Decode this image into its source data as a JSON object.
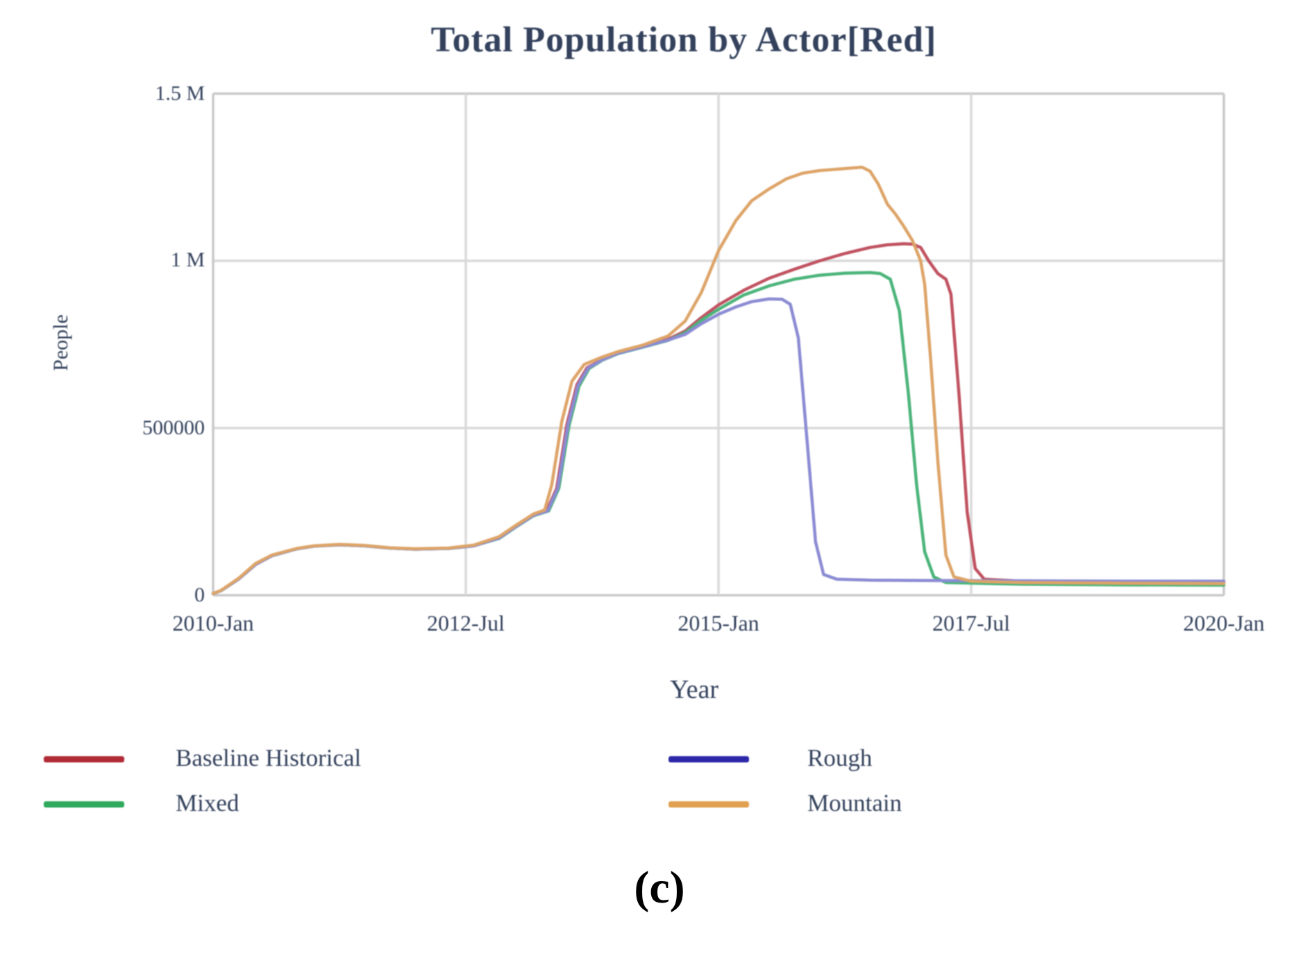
{
  "figure": {
    "caption": "(c)"
  },
  "chart_data": {
    "type": "line",
    "title": "Total Population by Actor[Red]",
    "xlabel": "Year",
    "ylabel": "People",
    "xlim": [
      2010,
      2020
    ],
    "ylim": [
      0,
      1500000
    ],
    "grid": true,
    "legend_position": "below-two-columns",
    "background_color": "#ffffff",
    "grid_color": "#d9d9d9",
    "frame_color": "#c9c9c9",
    "text_color": "#33415c",
    "x_ticks": [
      {
        "label": "2010-Jan",
        "year": 2010
      },
      {
        "label": "2012-Jul",
        "year": 2012.5
      },
      {
        "label": "2015-Jan",
        "year": 2015
      },
      {
        "label": "2017-Jul",
        "year": 2017.5
      },
      {
        "label": "2020-Jan",
        "year": 2020
      }
    ],
    "y_ticks": [
      {
        "label": "1.5 M",
        "value": 1500000
      },
      {
        "label": "1 M",
        "value": 1000000
      },
      {
        "label": "500000",
        "value": 500000
      },
      {
        "label": "0",
        "value": 0
      }
    ],
    "series": [
      {
        "name": "Baseline Historical",
        "line_color": "#c05260",
        "legend_color": "#b02b35",
        "points": [
          [
            2010.0,
            5000
          ],
          [
            2010.08,
            14000
          ],
          [
            2010.25,
            48000
          ],
          [
            2010.42,
            92000
          ],
          [
            2010.58,
            118000
          ],
          [
            2010.83,
            139000
          ],
          [
            2011.0,
            147000
          ],
          [
            2011.25,
            151000
          ],
          [
            2011.5,
            148000
          ],
          [
            2011.75,
            141000
          ],
          [
            2012.0,
            138000
          ],
          [
            2012.33,
            140000
          ],
          [
            2012.58,
            148000
          ],
          [
            2012.83,
            172000
          ],
          [
            2013.0,
            207000
          ],
          [
            2013.17,
            240000
          ],
          [
            2013.3,
            252000
          ],
          [
            2013.4,
            320000
          ],
          [
            2013.5,
            510000
          ],
          [
            2013.6,
            630000
          ],
          [
            2013.7,
            680000
          ],
          [
            2013.85,
            705000
          ],
          [
            2014.0,
            725000
          ],
          [
            2014.25,
            745000
          ],
          [
            2014.5,
            765000
          ],
          [
            2014.67,
            790000
          ],
          [
            2014.83,
            830000
          ],
          [
            2015.0,
            868000
          ],
          [
            2015.25,
            912000
          ],
          [
            2015.5,
            948000
          ],
          [
            2015.75,
            975000
          ],
          [
            2016.0,
            1000000
          ],
          [
            2016.25,
            1022000
          ],
          [
            2016.5,
            1040000
          ],
          [
            2016.67,
            1048000
          ],
          [
            2016.83,
            1051000
          ],
          [
            2016.92,
            1050000
          ],
          [
            2017.0,
            1040000
          ],
          [
            2017.08,
            1000000
          ],
          [
            2017.17,
            962000
          ],
          [
            2017.25,
            945000
          ],
          [
            2017.3,
            900000
          ],
          [
            2017.38,
            600000
          ],
          [
            2017.46,
            250000
          ],
          [
            2017.54,
            80000
          ],
          [
            2017.63,
            48000
          ],
          [
            2018.0,
            42000
          ],
          [
            2019.0,
            40000
          ],
          [
            2020.0,
            38000
          ]
        ]
      },
      {
        "name": "Mixed",
        "line_color": "#4bb47a",
        "legend_color": "#2fa95e",
        "points": [
          [
            2010.0,
            5000
          ],
          [
            2010.08,
            14000
          ],
          [
            2010.25,
            48000
          ],
          [
            2010.42,
            92000
          ],
          [
            2010.58,
            118000
          ],
          [
            2010.83,
            139000
          ],
          [
            2011.0,
            147000
          ],
          [
            2011.25,
            151000
          ],
          [
            2011.5,
            148000
          ],
          [
            2011.75,
            141000
          ],
          [
            2012.0,
            138000
          ],
          [
            2012.33,
            140000
          ],
          [
            2012.58,
            148000
          ],
          [
            2012.83,
            170000
          ],
          [
            2013.0,
            205000
          ],
          [
            2013.17,
            238000
          ],
          [
            2013.32,
            252000
          ],
          [
            2013.42,
            320000
          ],
          [
            2013.52,
            505000
          ],
          [
            2013.62,
            625000
          ],
          [
            2013.72,
            678000
          ],
          [
            2013.85,
            703000
          ],
          [
            2014.0,
            722000
          ],
          [
            2014.25,
            742000
          ],
          [
            2014.5,
            762000
          ],
          [
            2014.67,
            785000
          ],
          [
            2014.83,
            822000
          ],
          [
            2015.0,
            855000
          ],
          [
            2015.25,
            898000
          ],
          [
            2015.5,
            925000
          ],
          [
            2015.75,
            945000
          ],
          [
            2016.0,
            957000
          ],
          [
            2016.25,
            963000
          ],
          [
            2016.5,
            965000
          ],
          [
            2016.6,
            962000
          ],
          [
            2016.7,
            945000
          ],
          [
            2016.79,
            850000
          ],
          [
            2016.88,
            600000
          ],
          [
            2016.96,
            330000
          ],
          [
            2017.04,
            130000
          ],
          [
            2017.13,
            55000
          ],
          [
            2017.25,
            38000
          ],
          [
            2018.0,
            33000
          ],
          [
            2019.0,
            31000
          ],
          [
            2020.0,
            30000
          ]
        ]
      },
      {
        "name": "Rough",
        "line_color": "#8b8bd4",
        "legend_color": "#2b27a8",
        "points": [
          [
            2010.0,
            5000
          ],
          [
            2010.08,
            14000
          ],
          [
            2010.25,
            48000
          ],
          [
            2010.42,
            92000
          ],
          [
            2010.58,
            118000
          ],
          [
            2010.83,
            139000
          ],
          [
            2011.0,
            147000
          ],
          [
            2011.25,
            151000
          ],
          [
            2011.5,
            148000
          ],
          [
            2011.75,
            141000
          ],
          [
            2012.0,
            138000
          ],
          [
            2012.33,
            140000
          ],
          [
            2012.58,
            148000
          ],
          [
            2012.83,
            171000
          ],
          [
            2013.0,
            206000
          ],
          [
            2013.17,
            239000
          ],
          [
            2013.31,
            252000
          ],
          [
            2013.41,
            320000
          ],
          [
            2013.51,
            508000
          ],
          [
            2013.61,
            628000
          ],
          [
            2013.71,
            679000
          ],
          [
            2013.85,
            704000
          ],
          [
            2014.0,
            723000
          ],
          [
            2014.25,
            743000
          ],
          [
            2014.5,
            763000
          ],
          [
            2014.67,
            780000
          ],
          [
            2014.83,
            812000
          ],
          [
            2015.0,
            840000
          ],
          [
            2015.17,
            862000
          ],
          [
            2015.33,
            878000
          ],
          [
            2015.5,
            886000
          ],
          [
            2015.63,
            885000
          ],
          [
            2015.71,
            870000
          ],
          [
            2015.79,
            770000
          ],
          [
            2015.88,
            450000
          ],
          [
            2015.96,
            160000
          ],
          [
            2016.04,
            62000
          ],
          [
            2016.17,
            48000
          ],
          [
            2016.5,
            45000
          ],
          [
            2017.0,
            44000
          ],
          [
            2018.0,
            43000
          ],
          [
            2019.0,
            42000
          ],
          [
            2020.0,
            42000
          ]
        ]
      },
      {
        "name": "Mountain",
        "line_color": "#dda468",
        "legend_color": "#e0a050",
        "points": [
          [
            2010.0,
            5000
          ],
          [
            2010.08,
            15000
          ],
          [
            2010.25,
            50000
          ],
          [
            2010.42,
            95000
          ],
          [
            2010.58,
            120000
          ],
          [
            2010.83,
            140000
          ],
          [
            2011.0,
            148000
          ],
          [
            2011.25,
            152000
          ],
          [
            2011.5,
            149000
          ],
          [
            2011.75,
            142000
          ],
          [
            2012.0,
            139000
          ],
          [
            2012.33,
            141000
          ],
          [
            2012.58,
            150000
          ],
          [
            2012.83,
            175000
          ],
          [
            2013.0,
            210000
          ],
          [
            2013.17,
            243000
          ],
          [
            2013.28,
            255000
          ],
          [
            2013.35,
            330000
          ],
          [
            2013.45,
            520000
          ],
          [
            2013.55,
            640000
          ],
          [
            2013.67,
            690000
          ],
          [
            2013.83,
            710000
          ],
          [
            2014.0,
            728000
          ],
          [
            2014.25,
            748000
          ],
          [
            2014.5,
            775000
          ],
          [
            2014.67,
            820000
          ],
          [
            2014.83,
            905000
          ],
          [
            2015.0,
            1030000
          ],
          [
            2015.17,
            1120000
          ],
          [
            2015.33,
            1180000
          ],
          [
            2015.5,
            1215000
          ],
          [
            2015.67,
            1245000
          ],
          [
            2015.83,
            1262000
          ],
          [
            2016.0,
            1270000
          ],
          [
            2016.25,
            1276000
          ],
          [
            2016.42,
            1280000
          ],
          [
            2016.5,
            1268000
          ],
          [
            2016.58,
            1230000
          ],
          [
            2016.67,
            1170000
          ],
          [
            2016.75,
            1140000
          ],
          [
            2016.83,
            1105000
          ],
          [
            2016.92,
            1060000
          ],
          [
            2017.0,
            1000000
          ],
          [
            2017.04,
            930000
          ],
          [
            2017.1,
            700000
          ],
          [
            2017.17,
            400000
          ],
          [
            2017.25,
            120000
          ],
          [
            2017.33,
            55000
          ],
          [
            2017.5,
            42000
          ],
          [
            2018.0,
            38000
          ],
          [
            2019.0,
            36000
          ],
          [
            2020.0,
            35000
          ]
        ]
      }
    ]
  }
}
